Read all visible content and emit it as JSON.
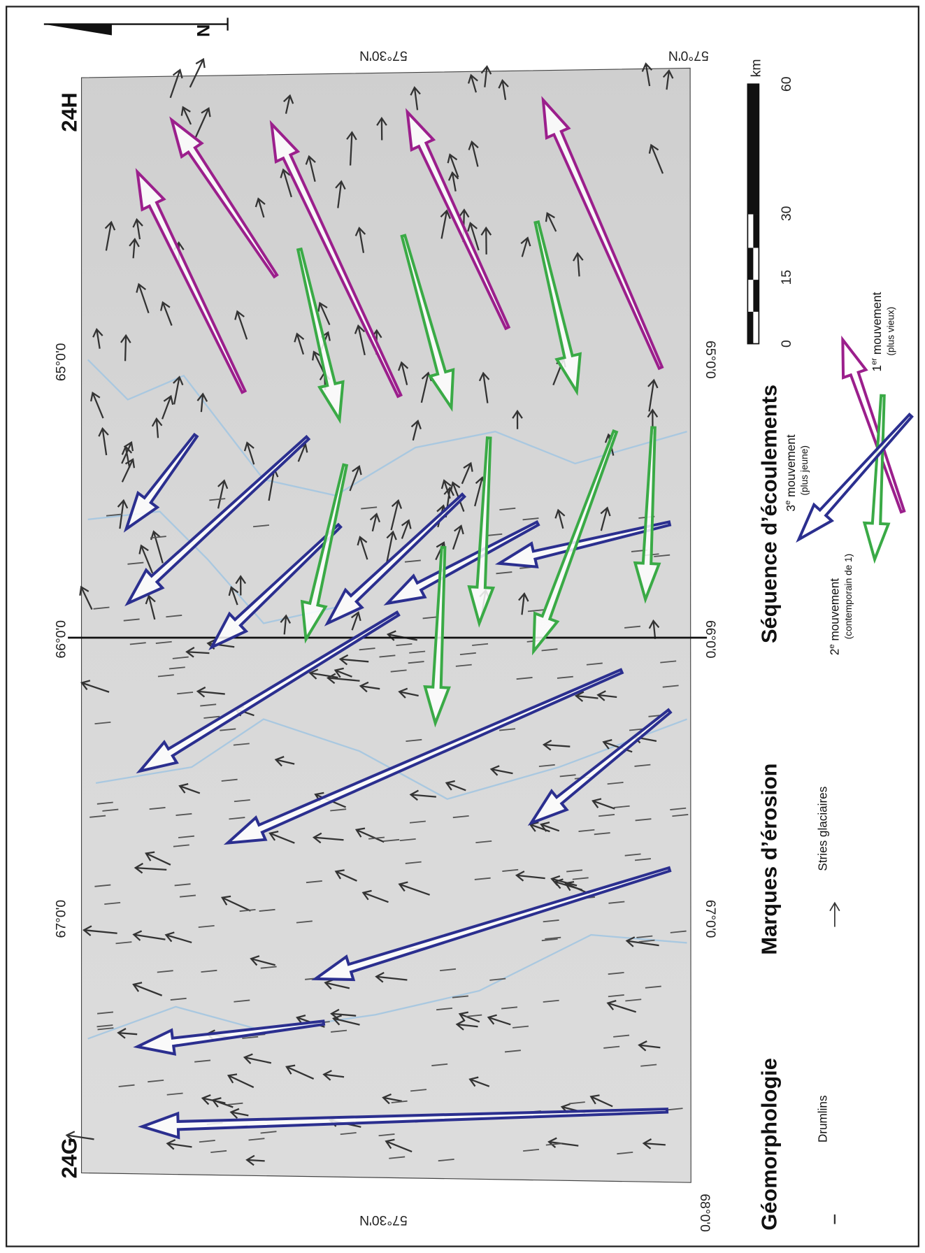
{
  "map": {
    "sheets": [
      "24H",
      "24G"
    ],
    "top_labels": [
      "57°30'N",
      "57°0'N"
    ],
    "bottom_labels": [
      "57°30'N",
      "68°0'0"
    ],
    "left_labels": [
      "65°0'0",
      "66°0'0",
      "67°0'0"
    ],
    "right_labels": [
      "65°0'0",
      "66°0'0",
      "67°0'0"
    ],
    "north": "N"
  },
  "scale": {
    "unit": "km",
    "ticks": [
      "0",
      "15",
      "30",
      "60"
    ]
  },
  "legend": {
    "sequence_title": "Séquence d’écoulements",
    "movements": [
      {
        "num": "3",
        "sup": "e",
        "text": " mouvement",
        "note": "(plus jeune)"
      },
      {
        "num": "2",
        "sup": "e",
        "text": " mouvement",
        "note": "(contemporain de 1)"
      },
      {
        "num": "1",
        "sup": "er",
        "text": " mouvement",
        "note": "(plus vieux)"
      }
    ],
    "erosion_title": "Marques d’érosion",
    "erosion_item": "Stries glaciaires",
    "geomorph_title": "Géomorphologie",
    "geomorph_item": "Drumlins"
  }
}
